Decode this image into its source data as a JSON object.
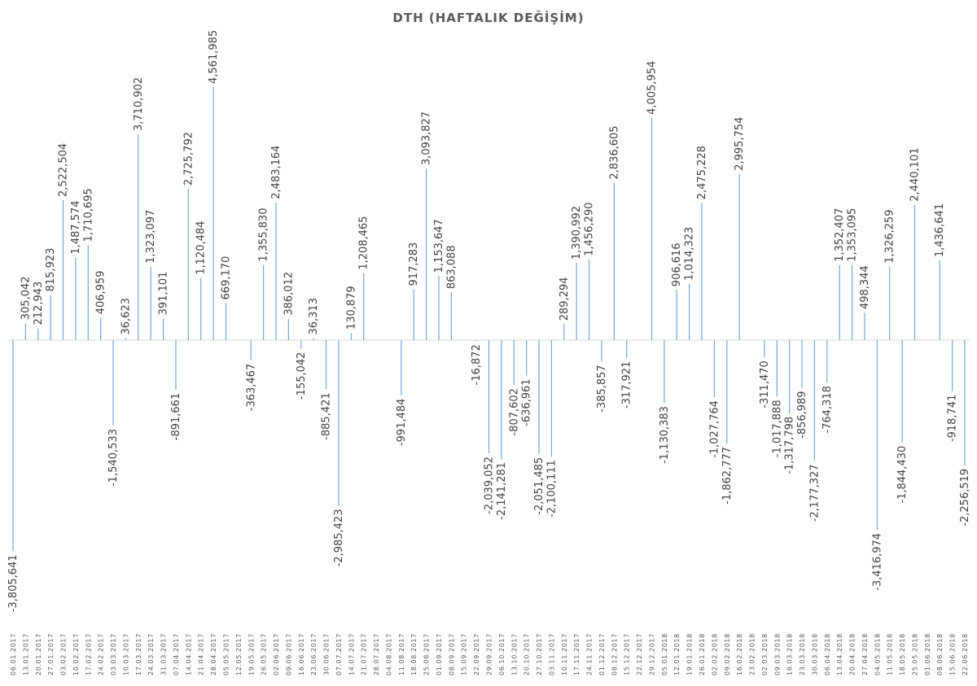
{
  "chart_data": {
    "type": "bar",
    "title": "DTH (HAFTALIK DEĞİŞİM)",
    "xlabel": "",
    "ylabel": "",
    "ylim": [
      -3900000,
      4700000
    ],
    "grid": false,
    "legend": "none",
    "colors": {
      "stem": "#6fa8dc",
      "axis": "#d9d9d9",
      "text": "#404040",
      "title": "#595959"
    },
    "categories": [
      "06.01.2017",
      "13.01.2017",
      "20.01.2017",
      "27.01.2017",
      "03.02.2017",
      "10.02.2017",
      "17.02.2017",
      "24.02.2017",
      "03.03.2017",
      "10.03.2017",
      "17.03.2017",
      "24.03.2017",
      "31.03.2017",
      "07.04.2017",
      "14.04.2017",
      "21.04.2017",
      "28.04.2017",
      "05.05.2017",
      "12.05.2017",
      "19.05.2017",
      "26.05.2017",
      "02.06.2017",
      "09.06.2017",
      "16.06.2017",
      "23.06.2017",
      "30.06.2017",
      "07.07.2017",
      "14.07.2017",
      "21.07.2017",
      "28.07.2017",
      "04.08.2017",
      "11.08.2017",
      "18.08.2017",
      "25.08.2017",
      "01.09.2017",
      "08.09.2017",
      "15.09.2017",
      "22.09.2017",
      "29.09.2017",
      "06.10.2017",
      "13.10.2017",
      "20.10.2017",
      "27.10.2017",
      "03.11.2017",
      "10.11.2017",
      "17.11.2017",
      "24.11.2017",
      "01.12.2017",
      "08.12.2017",
      "15.12.2017",
      "22.12.2017",
      "29.12.2017",
      "05.01.2018",
      "12.01.2018",
      "19.01.2018",
      "26.01.2018",
      "02.02.2018",
      "09.02.2018",
      "16.02.2018",
      "23.02.2018",
      "02.03.2018",
      "09.03.2018",
      "16.03.2018",
      "23.03.2018",
      "30.03.2018",
      "06.04.2018",
      "13.04.2018",
      "20.04.2018",
      "27.04.2018",
      "04.05.2018",
      "11.05.2018",
      "18.05.2018",
      "25.05.2018",
      "01.06.2018",
      "08.06.2018",
      "15.06.2018",
      "22.06.2018"
    ],
    "values": [
      -3805641,
      305042,
      212943,
      815923,
      2522504,
      1487574,
      1710695,
      406959,
      -1540533,
      36623,
      3710902,
      1323097,
      391101,
      -891661,
      2725792,
      1120484,
      4561985,
      669170,
      null,
      -363467,
      1355830,
      2483164,
      386012,
      -155042,
      36313,
      -885421,
      -2985423,
      130879,
      1208465,
      null,
      null,
      -991484,
      917283,
      3093827,
      1153647,
      863088,
      null,
      -16872,
      -2039052,
      -2141281,
      -807602,
      -636961,
      -2051485,
      -2100111,
      289294,
      1390992,
      1456290,
      -385857,
      2836605,
      -317921,
      null,
      4005954,
      -1130383,
      906616,
      1014323,
      2475228,
      -1027764,
      -1862777,
      2995754,
      null,
      -311470,
      -1017888,
      -1317798,
      -856989,
      -2177327,
      -764318,
      1352407,
      1353095,
      498344,
      -3416974,
      1326259,
      -1844430,
      2440101,
      null,
      1436641,
      -918741,
      -2256519
    ],
    "labels": [
      "-3,805,641",
      "305,042",
      "212,943",
      "815,923",
      "2,522,504",
      "1,487,574",
      "1,710,695",
      "406,959",
      "-1,540,533",
      "36,623",
      "3,710,902",
      "1,323,097",
      "391,101",
      "-891,661",
      "2,725,792",
      "1,120,484",
      "4,561,985",
      "669,170",
      "",
      "-363,467",
      "1,355,830",
      "2,483,164",
      "386,012",
      "-155,042",
      "36,313",
      "-885,421",
      "-2,985,423",
      "130,879",
      "1,208,465",
      "",
      "",
      "-991,484",
      "917,283",
      "3,093,827",
      "1,153,647",
      "863,088",
      "",
      "-16,872",
      "-2,039,052",
      "-2,141,281",
      "-807,602",
      "-636,961",
      "-2,051,485",
      "-2,100,111",
      "289,294",
      "1,390,992",
      "1,456,290",
      "-385,857",
      "2,836,605",
      "-317,921",
      "",
      "4,005,954",
      "-1,130,383",
      "906,616",
      "1,014,323",
      "2,475,228",
      "-1,027,764",
      "-1,862,777",
      "2,995,754",
      "",
      "-311,470",
      "-1,017,888",
      "-1,317,798",
      "-856,989",
      "-2,177,327",
      "-764,318",
      "1,352,407",
      "1,353,095",
      "498,344",
      "-3,416,974",
      "1,326,259",
      "-1,844,430",
      "2,440,101",
      "",
      "1,436,641",
      "-918,741",
      "-2,256,519"
    ]
  }
}
